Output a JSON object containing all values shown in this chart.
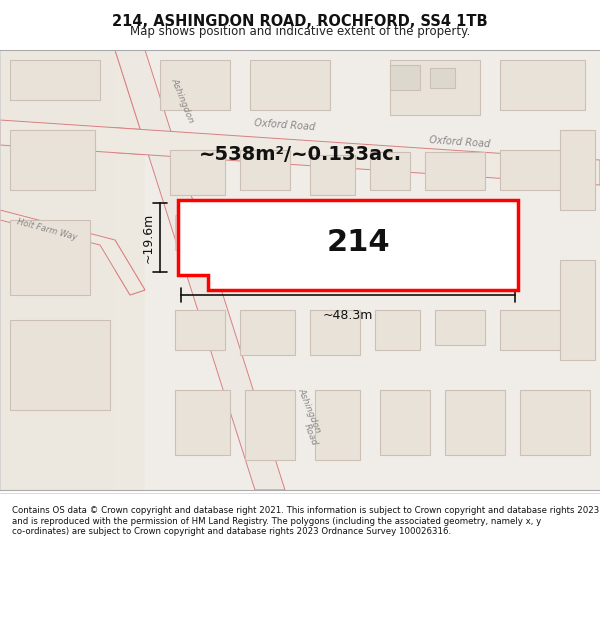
{
  "title": "214, ASHINGDON ROAD, ROCHFORD, SS4 1TB",
  "subtitle": "Map shows position and indicative extent of the property.",
  "area_text": "~538m²/~0.133ac.",
  "label_214": "214",
  "dim_width": "~48.3m",
  "dim_height": "~19.6m",
  "footer": "Contains OS data © Crown copyright and database right 2021. This information is subject to Crown copyright and database rights 2023 and is reproduced with the permission of HM Land Registry. The polygons (including the associated geometry, namely x, y co-ordinates) are subject to Crown copyright and database rights 2023 Ordnance Survey 100026316.",
  "bg_color": "#f0ede8",
  "map_bg": "#f5f2ee",
  "road_color": "#f5b8b8",
  "building_color": "#e8e0d8",
  "road_line_color": "#e08080",
  "highlight_color": "#ff0000",
  "text_color": "#404040",
  "footer_bg": "#ffffff",
  "title_bg": "#ffffff"
}
